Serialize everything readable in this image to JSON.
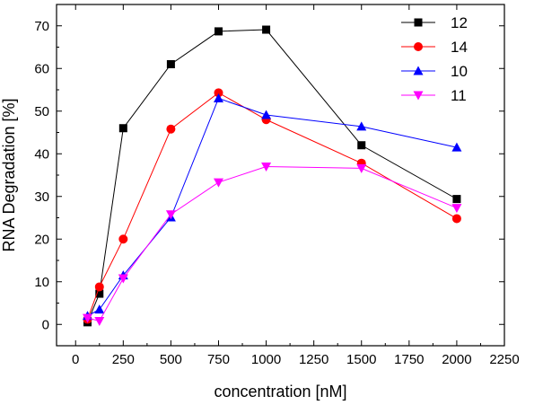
{
  "chart_data": {
    "type": "line",
    "title": "",
    "xlabel": "concentration [nM]",
    "ylabel": "RNA Degradation [%]",
    "xlim": [
      -100,
      2250
    ],
    "ylim": [
      -5,
      75
    ],
    "xticks": [
      0,
      250,
      500,
      750,
      1000,
      1250,
      1500,
      1750,
      2000,
      2250
    ],
    "yticks": [
      0,
      10,
      20,
      30,
      40,
      50,
      60,
      70
    ],
    "grid": false,
    "legend_position": "top-right",
    "series": [
      {
        "name": "12",
        "color": "#000000",
        "marker": "square",
        "x": [
          62.5,
          125,
          250,
          500,
          750,
          1000,
          1500,
          2000
        ],
        "y": [
          0.5,
          7.2,
          46,
          61,
          68.7,
          69.1,
          42,
          29.4
        ]
      },
      {
        "name": "14",
        "color": "#ff0000",
        "marker": "circle",
        "x": [
          62.5,
          125,
          250,
          500,
          750,
          1000,
          1500,
          2000
        ],
        "y": [
          1.2,
          8.8,
          20,
          45.8,
          54.3,
          48,
          37.8,
          24.8
        ]
      },
      {
        "name": "10",
        "color": "#0000ff",
        "marker": "triangle-up",
        "x": [
          62.5,
          125,
          250,
          500,
          750,
          1000,
          1500,
          2000
        ],
        "y": [
          2,
          3.5,
          11.5,
          25.1,
          53,
          49.1,
          46.4,
          41.5
        ]
      },
      {
        "name": "11",
        "color": "#ff00ff",
        "marker": "triangle-down",
        "x": [
          62.5,
          125,
          250,
          500,
          750,
          1000,
          1500,
          2000
        ],
        "y": [
          1.5,
          0.8,
          10.8,
          25.8,
          33.3,
          37,
          36.6,
          27.3
        ]
      }
    ]
  }
}
